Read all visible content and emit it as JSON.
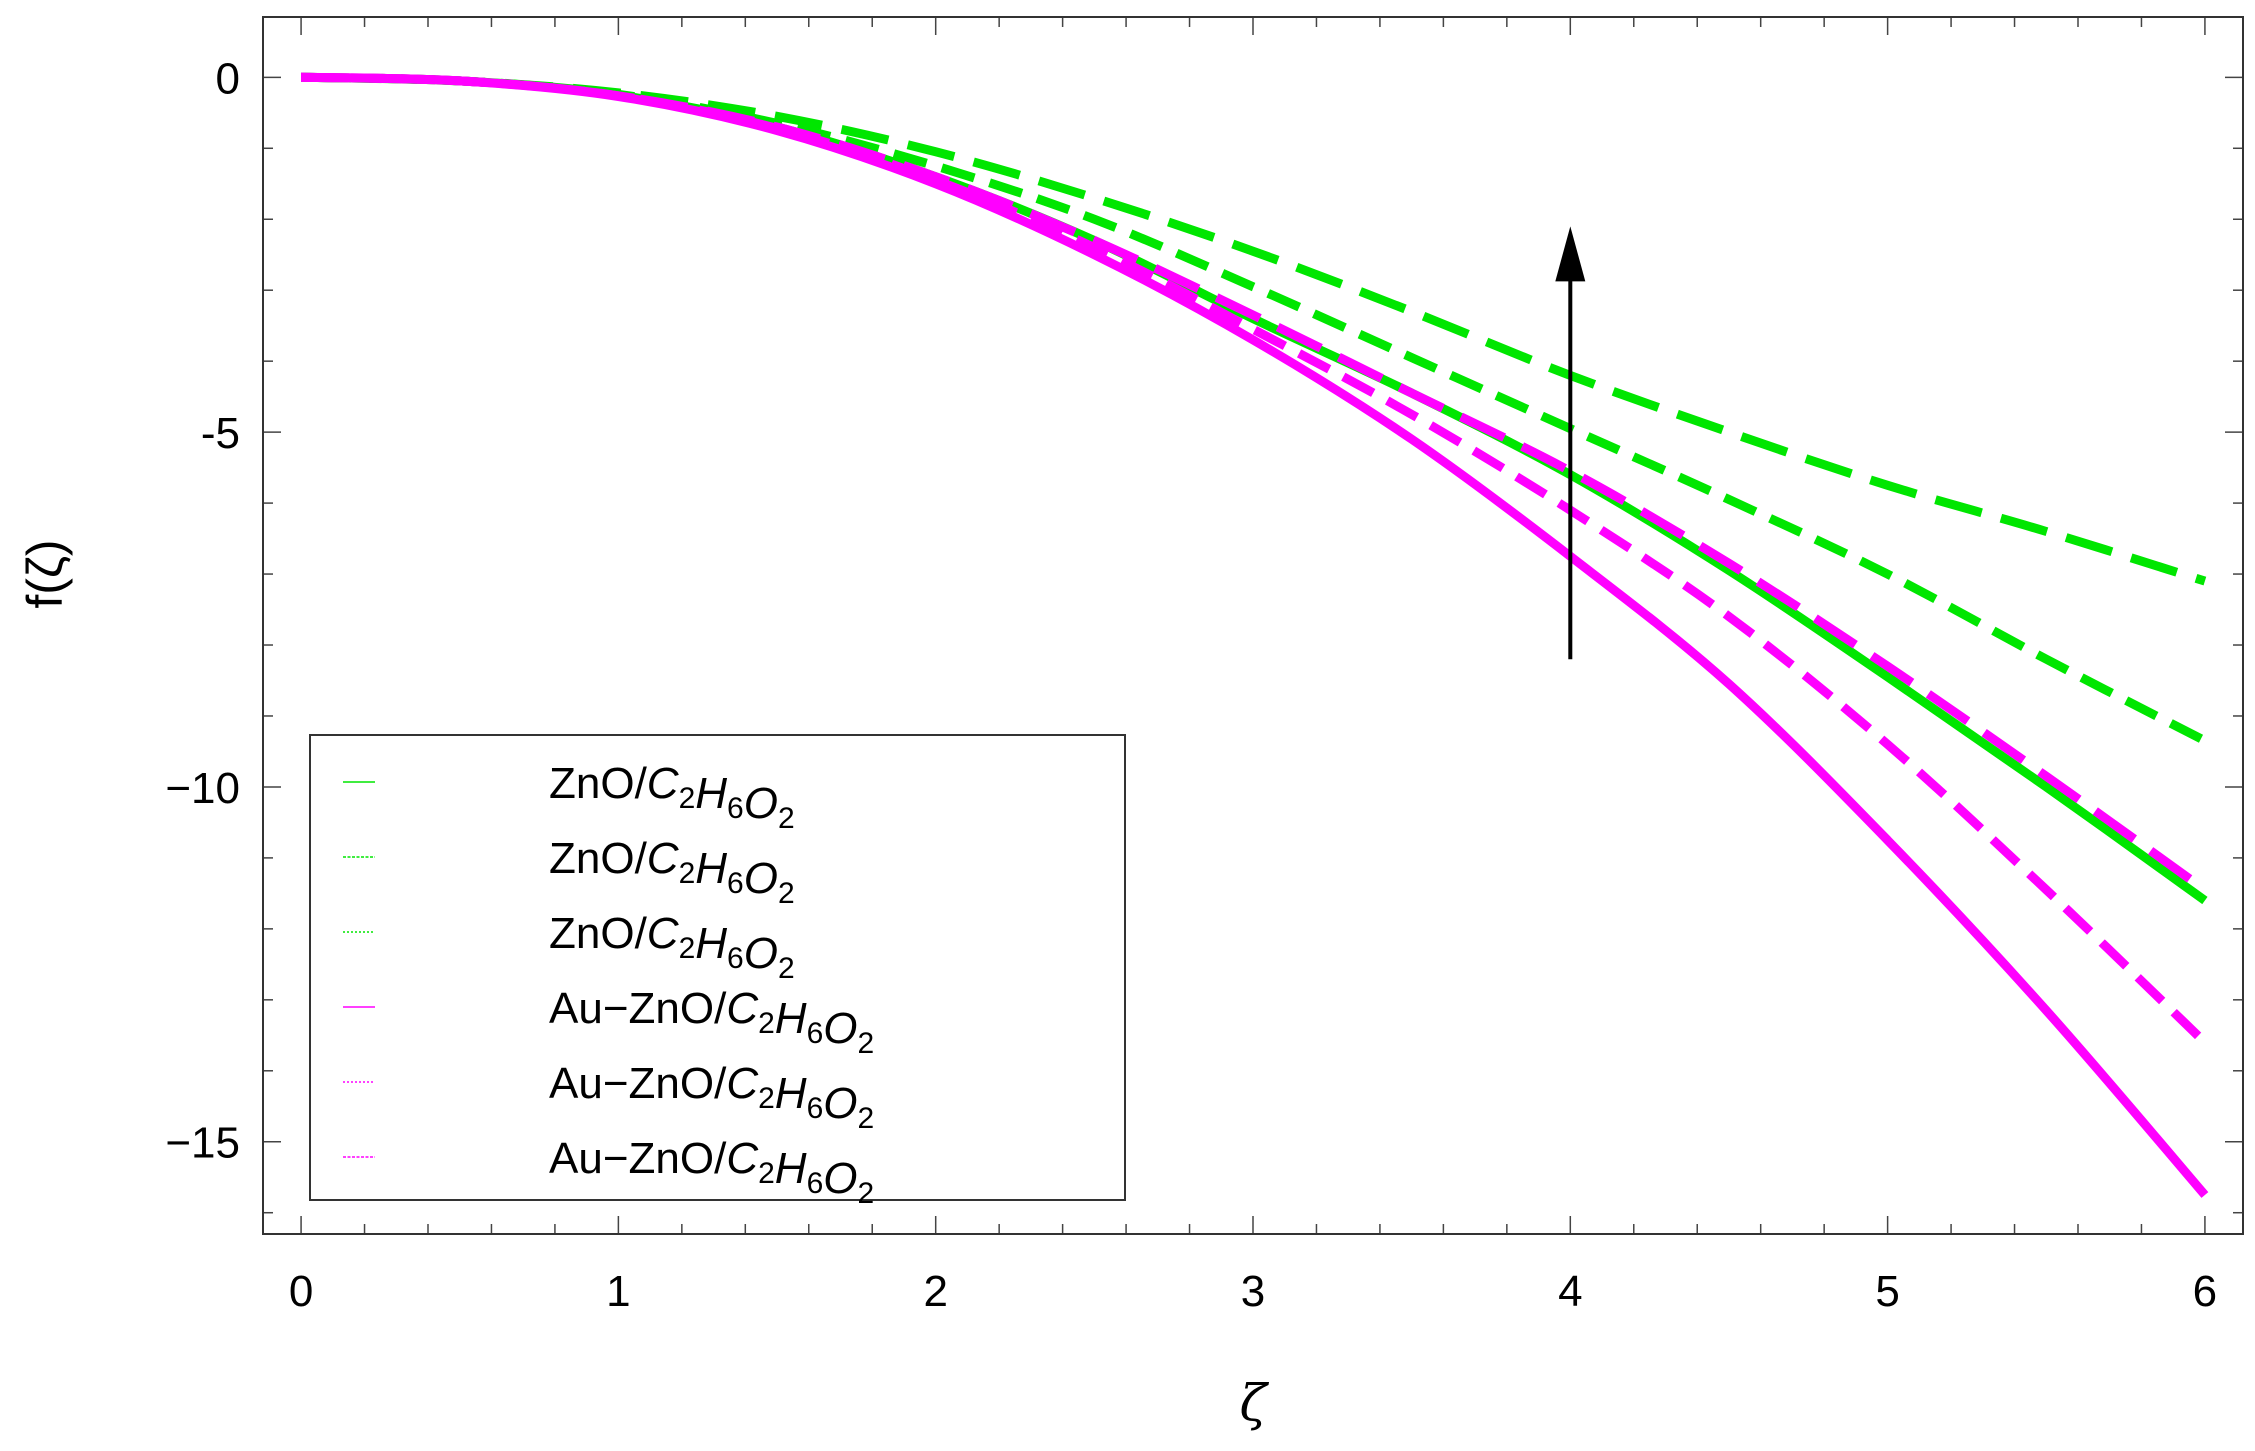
{
  "chart_data": {
    "type": "line",
    "xlabel": "ζ",
    "ylabel": "f(ζ)",
    "xlim": [
      -0.12,
      6.12
    ],
    "ylim": [
      -16.3,
      0.85
    ],
    "x_ticks": [
      0,
      1,
      2,
      3,
      4,
      5,
      6
    ],
    "x_tick_labels": [
      "0",
      "1",
      "2",
      "3",
      "4",
      "5",
      "6"
    ],
    "y_ticks": [
      0,
      -5,
      -10,
      -15
    ],
    "y_tick_labels": [
      "0",
      "-5",
      "−10",
      "−15"
    ],
    "x_minor_step": 0.2,
    "y_minor_step": 1,
    "grid": false,
    "legend_placement": "bottom-left",
    "colors": {
      "green": "#00e600",
      "magenta": "#ff00ff",
      "arrow": "#000000"
    },
    "series": [
      {
        "label": "ZnO/C2H6O2",
        "legend": {
          "base": "ZnO/",
          "parts": [
            [
              "C",
              "2"
            ],
            [
              "H",
              "6"
            ],
            [
              "O",
              "2"
            ]
          ]
        },
        "color": "#00e600",
        "style": "solid",
        "x": [
          0,
          0.5,
          1,
          1.5,
          2,
          2.5,
          3,
          3.5,
          4,
          4.5,
          5,
          5.5,
          6
        ],
        "y": [
          0,
          -0.05,
          -0.25,
          -0.7,
          -1.4,
          -2.3,
          -3.4,
          -4.45,
          -5.6,
          -6.95,
          -8.45,
          -10.0,
          -11.6
        ]
      },
      {
        "label": "ZnO/C2H6O2",
        "legend": {
          "base": "ZnO/",
          "parts": [
            [
              "C",
              "2"
            ],
            [
              "H",
              "6"
            ],
            [
              "O",
              "2"
            ]
          ]
        },
        "color": "#00e600",
        "style": "dashed",
        "x": [
          0,
          0.5,
          1,
          1.5,
          2,
          2.5,
          3,
          3.5,
          4,
          4.5,
          5,
          5.5,
          6
        ],
        "y": [
          0,
          -0.05,
          -0.24,
          -0.65,
          -1.25,
          -2.0,
          -2.95,
          -3.95,
          -4.95,
          -5.95,
          -7.0,
          -8.2,
          -9.35
        ]
      },
      {
        "label": "ZnO/C2H6O2",
        "legend": {
          "base": "ZnO/",
          "parts": [
            [
              "C",
              "2"
            ],
            [
              "H",
              "6"
            ],
            [
              "O",
              "2"
            ]
          ]
        },
        "color": "#00e600",
        "style": "long-dashed",
        "x": [
          0,
          0.5,
          1,
          1.5,
          2,
          2.5,
          3,
          3.5,
          4,
          4.5,
          5,
          5.5,
          6
        ],
        "y": [
          0,
          -0.05,
          -0.22,
          -0.55,
          -1.05,
          -1.7,
          -2.45,
          -3.3,
          -4.2,
          -5.0,
          -5.75,
          -6.4,
          -7.1
        ]
      },
      {
        "label": "Au-ZnO/C2H6O2",
        "legend": {
          "base": "Au−ZnO/",
          "parts": [
            [
              "C",
              "2"
            ],
            [
              "H",
              "6"
            ],
            [
              "O",
              "2"
            ]
          ]
        },
        "color": "#ff00ff",
        "style": "solid",
        "x": [
          0,
          0.5,
          1,
          1.5,
          2,
          2.5,
          3,
          3.5,
          4,
          4.5,
          5,
          5.5,
          6
        ],
        "y": [
          0,
          -0.05,
          -0.27,
          -0.75,
          -1.5,
          -2.5,
          -3.7,
          -5.1,
          -6.75,
          -8.55,
          -10.75,
          -13.15,
          -15.75
        ]
      },
      {
        "label": "Au-ZnO/C2H6O2",
        "legend": {
          "base": "Au−ZnO/",
          "parts": [
            [
              "C",
              "2"
            ],
            [
              "H",
              "6"
            ],
            [
              "O",
              "2"
            ]
          ]
        },
        "color": "#ff00ff",
        "style": "long-dashed",
        "x": [
          0,
          0.5,
          1,
          1.5,
          2,
          2.5,
          3,
          3.5,
          4,
          4.5,
          5,
          5.5,
          6
        ],
        "y": [
          0,
          -0.05,
          -0.26,
          -0.7,
          -1.4,
          -2.3,
          -3.35,
          -4.45,
          -5.55,
          -6.85,
          -8.3,
          -9.85,
          -11.45
        ]
      },
      {
        "label": "Au-ZnO/C2H6O2",
        "legend": {
          "base": "Au−ZnO/",
          "parts": [
            [
              "C",
              "2"
            ],
            [
              "H",
              "6"
            ],
            [
              "O",
              "2"
            ]
          ]
        },
        "color": "#ff00ff",
        "style": "dashed",
        "x": [
          0,
          0.5,
          1,
          1.5,
          2,
          2.5,
          3,
          3.5,
          4,
          4.5,
          5,
          5.5,
          6
        ],
        "y": [
          0,
          -0.05,
          -0.26,
          -0.72,
          -1.45,
          -2.4,
          -3.55,
          -4.75,
          -6.1,
          -7.6,
          -9.4,
          -11.45,
          -13.6
        ]
      }
    ],
    "annotations": [
      {
        "type": "arrow",
        "x": 4,
        "y_from": -8.2,
        "y_to": -2.1,
        "color": "#000000"
      }
    ]
  }
}
